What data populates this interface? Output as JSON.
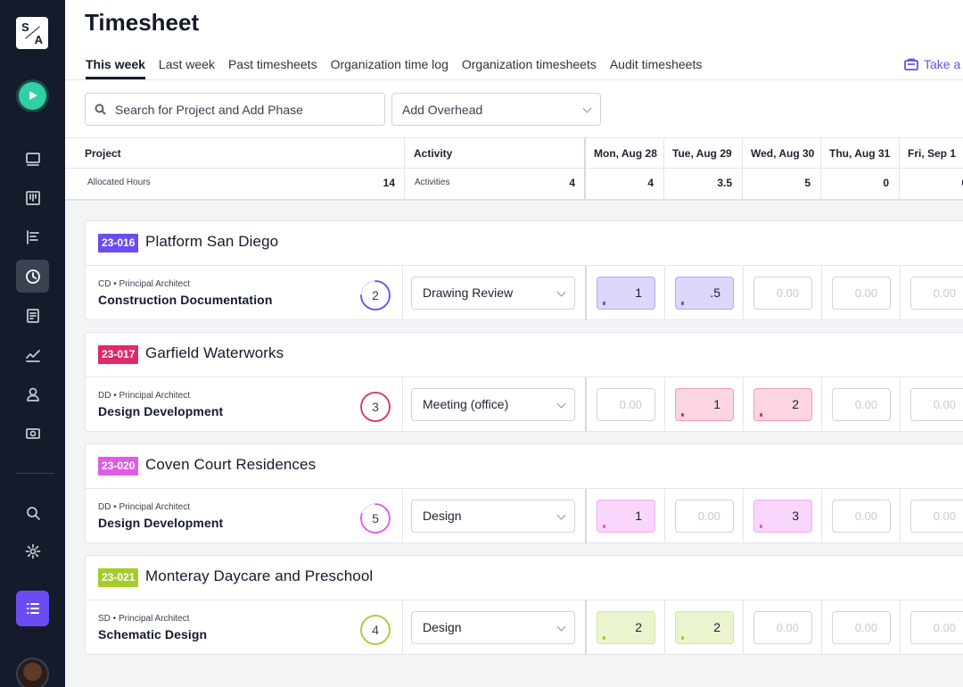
{
  "sidebar": {
    "logo_letters": [
      "S",
      "A"
    ],
    "icons": [
      "play-icon",
      "monitor-icon",
      "board-icon",
      "gantt-icon",
      "clock-icon",
      "report-icon",
      "chart-icon",
      "user-icon",
      "money-icon",
      "search-icon",
      "gear-icon",
      "list-icon"
    ],
    "active": "clock-icon"
  },
  "header": {
    "title": "Timesheet",
    "tabs": [
      {
        "label": "This week",
        "active": true
      },
      {
        "label": "Last week"
      },
      {
        "label": "Past timesheets"
      },
      {
        "label": "Organization time log"
      },
      {
        "label": "Organization timesheets"
      },
      {
        "label": "Audit timesheets"
      }
    ],
    "take_label": "Take a"
  },
  "controls": {
    "search_placeholder": "Search for Project and Add Phase",
    "overhead_label": "Add Overhead"
  },
  "grid": {
    "project_header": "Project",
    "activity_header": "Activity",
    "allocated_label": "Allocated Hours",
    "allocated_value": "14",
    "activities_label": "Activities",
    "activities_value": "4",
    "days": [
      {
        "label": "Mon, Aug 28",
        "total": "4"
      },
      {
        "label": "Tue, Aug 29",
        "total": "3.5"
      },
      {
        "label": "Wed, Aug 30",
        "total": "5"
      },
      {
        "label": "Thu, Aug 31",
        "total": "0"
      },
      {
        "label": "Fri, Sep 1",
        "total": "0"
      }
    ]
  },
  "placeholder_hours": "0.00",
  "projects": [
    {
      "code": "23-016",
      "name": "Platform San Diego",
      "color": "#6a4cf0",
      "fill": "#dcd7fb",
      "phase_code": "CD • Principal Architect",
      "phase_name": "Construction Documentation",
      "ring_value": "2",
      "ring_progress": 0.75,
      "activity": "Drawing Review",
      "hours": [
        "1",
        ".5",
        "",
        "",
        ""
      ]
    },
    {
      "code": "23-017",
      "name": "Garfield Waterworks",
      "color": "#e0296b",
      "fill": "#fbd5e2",
      "phase_code": "DD • Principal Architect",
      "phase_name": "Design Development",
      "ring_value": "3",
      "ring_progress": 1.0,
      "activity": "Meeting (office)",
      "hours": [
        "",
        "1",
        "2",
        "",
        ""
      ]
    },
    {
      "code": "23-020",
      "name": "Coven Court Residences",
      "color": "#e05ae6",
      "fill": "#f9d6fb",
      "phase_code": "DD • Principal Architect",
      "phase_name": "Design Development",
      "ring_value": "5",
      "ring_progress": 0.8,
      "activity": "Design",
      "hours": [
        "1",
        "",
        "3",
        "",
        ""
      ]
    },
    {
      "code": "23-021",
      "name": "Monteray Daycare and Preschool",
      "color": "#a6cc2c",
      "fill": "#eaf4cf",
      "phase_code": "SD • Principal Architect",
      "phase_name": "Schematic Design",
      "ring_value": "4",
      "ring_progress": 1.0,
      "activity": "Design",
      "hours": [
        "2",
        "2",
        "",
        "",
        ""
      ]
    }
  ]
}
